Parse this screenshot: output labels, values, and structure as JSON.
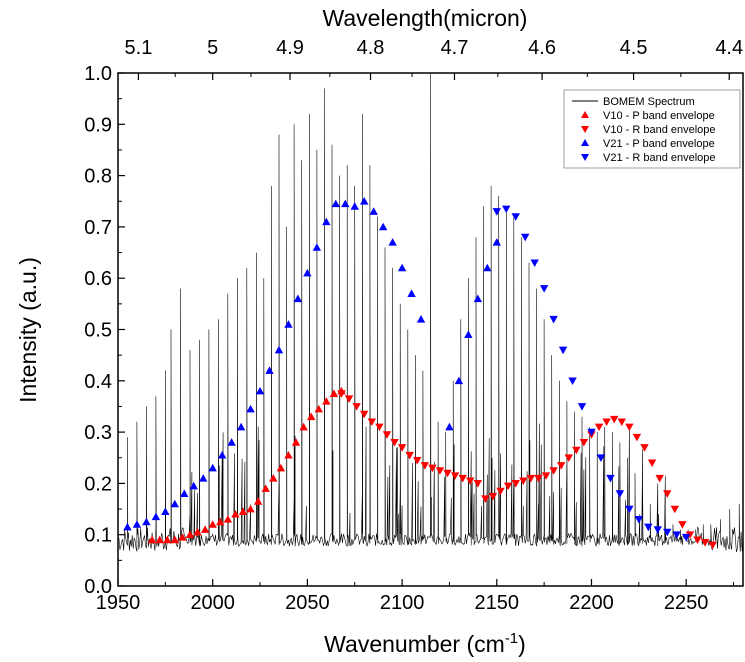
{
  "chart_data": {
    "type": "line",
    "xlabel": "Wavenumber (cm",
    "xlabel_superscript": "-1",
    "xlabel_suffix": ")",
    "ylabel": "Intensity (a.u.)",
    "top_axis_label": "Wavelength(micron)",
    "xlim": [
      1950,
      2280
    ],
    "ylim": [
      0.0,
      1.0
    ],
    "x_ticks": [
      1950,
      2000,
      2050,
      2100,
      2150,
      2200,
      2250
    ],
    "x_tick_labels": [
      "1950",
      "2000",
      "2050",
      "2100",
      "2150",
      "2200",
      "2250"
    ],
    "y_ticks": [
      0.0,
      0.1,
      0.2,
      0.3,
      0.4,
      0.5,
      0.6,
      0.7,
      0.8,
      0.9,
      1.0
    ],
    "y_tick_labels": [
      "0.0",
      "0.1",
      "0.2",
      "0.3",
      "0.4",
      "0.5",
      "0.6",
      "0.7",
      "0.8",
      "0.9",
      "1.0"
    ],
    "top_ticks_micron": [
      5.1,
      5.0,
      4.9,
      4.8,
      4.7,
      4.6,
      4.5,
      4.4
    ],
    "top_tick_labels": [
      "5.1",
      "5",
      "4.9",
      "4.8",
      "4.7",
      "4.6",
      "4.5",
      "4.4"
    ],
    "grid": false,
    "legend_position": "top-right",
    "spectrum": {
      "name": "BOMEM Spectrum",
      "color": "#000000",
      "baseline": 0.09,
      "peaks": [
        [
          1955,
          0.29
        ],
        [
          1960,
          0.32
        ],
        [
          1965,
          0.35
        ],
        [
          1970,
          0.37
        ],
        [
          1975,
          0.42
        ],
        [
          1978,
          0.5
        ],
        [
          1983,
          0.58
        ],
        [
          1988,
          0.46
        ],
        [
          1993,
          0.48
        ],
        [
          1998,
          0.5
        ],
        [
          2003,
          0.52
        ],
        [
          2008,
          0.57
        ],
        [
          2013,
          0.6
        ],
        [
          2018,
          0.62
        ],
        [
          2023,
          0.65
        ],
        [
          2027,
          0.6
        ],
        [
          2031,
          0.78
        ],
        [
          2035,
          0.88
        ],
        [
          2039,
          0.7
        ],
        [
          2043,
          0.9
        ],
        [
          2047,
          0.83
        ],
        [
          2051,
          0.92
        ],
        [
          2055,
          0.85
        ],
        [
          2059,
          0.97
        ],
        [
          2063,
          0.86
        ],
        [
          2067,
          0.8
        ],
        [
          2071,
          0.82
        ],
        [
          2075,
          0.78
        ],
        [
          2079,
          0.92
        ],
        [
          2083,
          0.82
        ],
        [
          2087,
          0.72
        ],
        [
          2091,
          0.66
        ],
        [
          2095,
          0.62
        ],
        [
          2099,
          0.55
        ],
        [
          2103,
          0.5
        ],
        [
          2107,
          0.45
        ],
        [
          2111,
          0.42
        ],
        [
          2115,
          1.0
        ],
        [
          2119,
          0.32
        ],
        [
          2123,
          0.3
        ],
        [
          2127,
          0.4
        ],
        [
          2131,
          0.52
        ],
        [
          2135,
          0.6
        ],
        [
          2139,
          0.68
        ],
        [
          2143,
          0.74
        ],
        [
          2147,
          0.78
        ],
        [
          2151,
          0.76
        ],
        [
          2155,
          0.74
        ],
        [
          2159,
          0.72
        ],
        [
          2163,
          0.68
        ],
        [
          2167,
          0.63
        ],
        [
          2171,
          0.58
        ],
        [
          2175,
          0.52
        ],
        [
          2179,
          0.45
        ],
        [
          2183,
          0.4
        ],
        [
          2187,
          0.36
        ],
        [
          2191,
          0.34
        ],
        [
          2195,
          0.33
        ],
        [
          2199,
          0.31
        ],
        [
          2203,
          0.3
        ],
        [
          2207,
          0.31
        ],
        [
          2211,
          0.3
        ],
        [
          2215,
          0.28
        ],
        [
          2219,
          0.25
        ],
        [
          2223,
          0.22
        ],
        [
          2227,
          0.19
        ],
        [
          2231,
          0.16
        ],
        [
          2235,
          0.14
        ],
        [
          2239,
          0.13
        ],
        [
          2243,
          0.12
        ],
        [
          2247,
          0.11
        ],
        [
          2251,
          0.11
        ],
        [
          2255,
          0.11
        ],
        [
          2259,
          0.12
        ],
        [
          2263,
          0.12
        ],
        [
          2268,
          0.13
        ],
        [
          2273,
          0.15
        ],
        [
          2278,
          0.16
        ]
      ]
    },
    "series": [
      {
        "name": "V10 - P band envelope",
        "marker": "triangle-up",
        "color": "#ff0000",
        "x": [
          1968,
          1972,
          1976,
          1980,
          1984,
          1988,
          1992,
          1996,
          2000,
          2004,
          2008,
          2012,
          2016,
          2020,
          2024,
          2028,
          2032,
          2036,
          2040,
          2044,
          2048,
          2052,
          2056,
          2060,
          2064,
          2068
        ],
        "y": [
          0.09,
          0.09,
          0.09,
          0.09,
          0.095,
          0.1,
          0.105,
          0.11,
          0.12,
          0.125,
          0.13,
          0.14,
          0.145,
          0.15,
          0.165,
          0.19,
          0.21,
          0.23,
          0.255,
          0.28,
          0.31,
          0.33,
          0.345,
          0.36,
          0.375,
          0.38
        ]
      },
      {
        "name": "V10 - R band envelope",
        "marker": "triangle-down",
        "color": "#ff0000",
        "x": [
          2068,
          2072,
          2076,
          2080,
          2084,
          2088,
          2092,
          2096,
          2100,
          2104,
          2108,
          2112,
          2116,
          2120,
          2124,
          2128,
          2132,
          2136,
          2140,
          2144,
          2148,
          2152,
          2156,
          2160,
          2164,
          2168,
          2172,
          2176,
          2180,
          2184,
          2188,
          2192,
          2196,
          2200,
          2204,
          2208,
          2212,
          2216,
          2220,
          2224,
          2228,
          2232,
          2236,
          2240,
          2244,
          2248,
          2252,
          2256,
          2260,
          2264
        ],
        "y": [
          0.375,
          0.365,
          0.35,
          0.335,
          0.32,
          0.31,
          0.295,
          0.28,
          0.27,
          0.255,
          0.245,
          0.235,
          0.23,
          0.225,
          0.22,
          0.215,
          0.21,
          0.205,
          0.2,
          0.17,
          0.175,
          0.185,
          0.195,
          0.2,
          0.205,
          0.21,
          0.21,
          0.215,
          0.225,
          0.235,
          0.25,
          0.265,
          0.28,
          0.295,
          0.31,
          0.32,
          0.325,
          0.32,
          0.31,
          0.29,
          0.27,
          0.24,
          0.21,
          0.18,
          0.15,
          0.12,
          0.1,
          0.09,
          0.085,
          0.08
        ]
      },
      {
        "name": "V21 - P band envelope",
        "marker": "triangle-up",
        "color": "#0000ff",
        "x": [
          1955,
          1960,
          1965,
          1970,
          1975,
          1980,
          1985,
          1990,
          1995,
          2000,
          2005,
          2010,
          2015,
          2020,
          2025,
          2030,
          2035,
          2040,
          2045,
          2050,
          2055,
          2060,
          2065,
          2070,
          2075,
          2080,
          2085,
          2090,
          2095,
          2100,
          2105,
          2110,
          2125,
          2130,
          2135,
          2140,
          2145,
          2150
        ],
        "y": [
          0.115,
          0.12,
          0.125,
          0.135,
          0.145,
          0.16,
          0.18,
          0.195,
          0.21,
          0.23,
          0.255,
          0.28,
          0.31,
          0.345,
          0.38,
          0.42,
          0.46,
          0.51,
          0.56,
          0.61,
          0.66,
          0.71,
          0.745,
          0.745,
          0.74,
          0.75,
          0.73,
          0.7,
          0.67,
          0.62,
          0.57,
          0.52,
          0.31,
          0.4,
          0.49,
          0.56,
          0.62,
          0.67
        ]
      },
      {
        "name": "V21 - R band envelope",
        "marker": "triangle-down",
        "color": "#0000ff",
        "x": [
          2150,
          2155,
          2160,
          2165,
          2170,
          2175,
          2180,
          2185,
          2190,
          2195,
          2200,
          2205,
          2210,
          2215,
          2220,
          2225,
          2230,
          2235,
          2240,
          2245,
          2250
        ],
        "y": [
          0.73,
          0.735,
          0.72,
          0.68,
          0.63,
          0.58,
          0.52,
          0.46,
          0.4,
          0.35,
          0.3,
          0.25,
          0.21,
          0.18,
          0.15,
          0.13,
          0.115,
          0.11,
          0.105,
          0.1,
          0.095
        ]
      }
    ]
  }
}
